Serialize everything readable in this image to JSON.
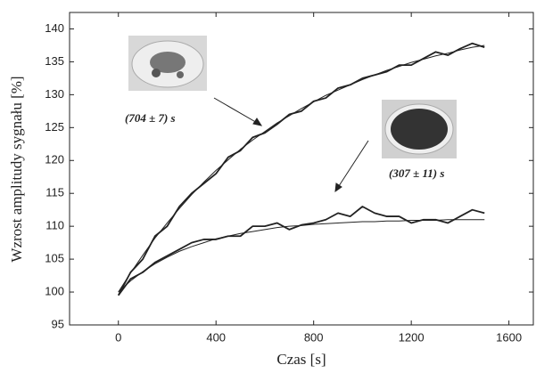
{
  "chart_data": {
    "type": "line",
    "x_label": "Czas [s]",
    "y_label": "Wzrost amplitudy sygnału [%]",
    "annotations": [
      "(704 ± 7) s",
      "(307 ± 11) s"
    ],
    "xlim": [
      -200,
      1700
    ],
    "xticks": [
      0,
      400,
      800,
      1200,
      1600
    ],
    "ylim": [
      95,
      142.5
    ],
    "yticks": [
      95,
      100,
      105,
      110,
      115,
      120,
      125,
      130,
      135,
      140
    ],
    "x": [
      0,
      50,
      100,
      150,
      200,
      250,
      300,
      350,
      400,
      450,
      500,
      550,
      600,
      650,
      700,
      750,
      800,
      850,
      900,
      950,
      1000,
      1050,
      1100,
      1150,
      1200,
      1250,
      1300,
      1350,
      1400,
      1450,
      1500
    ],
    "series": [
      {
        "color": "#222222",
        "values": [
          99.5,
          103,
          105,
          108.5,
          110,
          113,
          115,
          116.5,
          118,
          120.5,
          121.5,
          123.5,
          124.2,
          125.5,
          127,
          127.5,
          129,
          129.5,
          131,
          131.5,
          132.5,
          133,
          133.5,
          134.5,
          134.5,
          135.5,
          136.5,
          136,
          137,
          137.8,
          137.2
        ]
      },
      {
        "color": "#222222",
        "values": [
          100,
          102.9,
          105.6,
          108.2,
          110.5,
          112.7,
          114.8,
          116.7,
          118.5,
          120.1,
          121.7,
          123.1,
          124.4,
          125.7,
          126.8,
          127.9,
          128.9,
          129.9,
          130.7,
          131.5,
          132.3,
          133.0,
          133.7,
          134.3,
          134.9,
          135.4,
          135.9,
          136.3,
          136.8,
          137.2,
          137.5
        ]
      },
      {
        "color": "#222222",
        "values": [
          99.5,
          102,
          103,
          104.5,
          105.5,
          106.5,
          107.5,
          108,
          108,
          108.5,
          108.5,
          110,
          110,
          110.5,
          109.5,
          110.2,
          110.5,
          111,
          112,
          111.5,
          113,
          112,
          111.5,
          111.5,
          110.5,
          111,
          111,
          110.5,
          111.5,
          112.5,
          112
        ]
      },
      {
        "color": "#222222",
        "values": [
          100,
          101.7,
          103.1,
          104.3,
          105.3,
          106.2,
          106.9,
          107.5,
          108.1,
          108.5,
          108.9,
          109.2,
          109.5,
          109.8,
          110.0,
          110.1,
          110.3,
          110.4,
          110.5,
          110.6,
          110.7,
          110.7,
          110.8,
          110.8,
          110.9,
          110.9,
          110.9,
          111.0,
          111.0,
          111.0,
          111.0
        ]
      }
    ]
  }
}
